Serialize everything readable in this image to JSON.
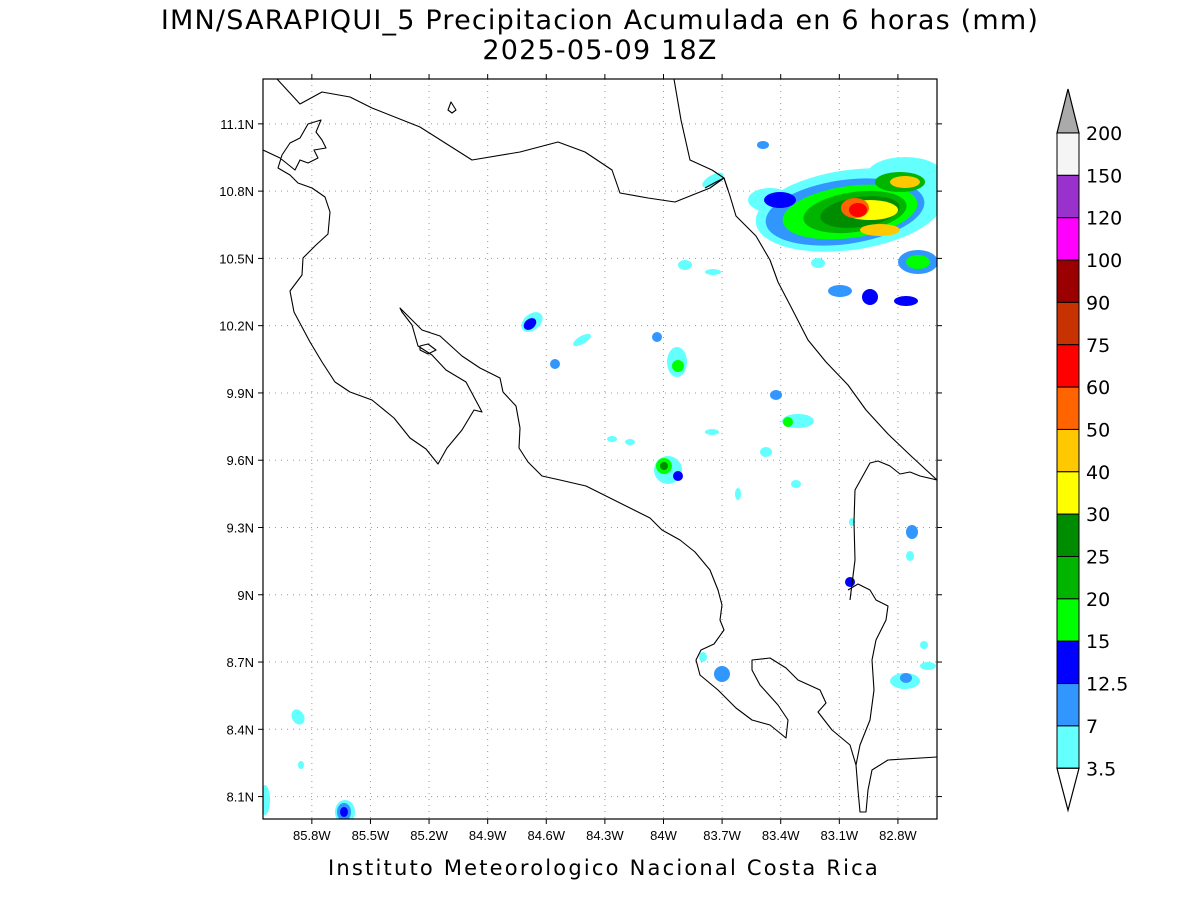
{
  "title": {
    "line1": "IMN/SARAPIQUI_5 Precipitacion Acumulada en 6 horas (mm)",
    "line2": "2025-05-09 18Z"
  },
  "footer": "Instituto Meteorologico Nacional Costa Rica",
  "map": {
    "lon_range": [
      -86.05,
      -82.6
    ],
    "lat_range": [
      8.0,
      11.3
    ],
    "x_ticks": [
      "85.8W",
      "85.5W",
      "85.2W",
      "84.9W",
      "84.6W",
      "84.3W",
      "84W",
      "83.7W",
      "83.4W",
      "83.1W",
      "82.8W"
    ],
    "y_ticks": [
      "11.1N",
      "10.8N",
      "10.5N",
      "10.2N",
      "9.9N",
      "9.6N",
      "9.3N",
      "9N",
      "8.7N",
      "8.4N",
      "8.1N"
    ],
    "grid": "dotted"
  },
  "colorbar": {
    "labels": [
      "200",
      "150",
      "120",
      "100",
      "90",
      "75",
      "60",
      "50",
      "40",
      "30",
      "25",
      "20",
      "15",
      "12.5",
      "7",
      "3.5"
    ],
    "colors": [
      "#f5f5f5",
      "#9932cc",
      "#ff00ff",
      "#9b0000",
      "#c83200",
      "#ff0000",
      "#ff6400",
      "#ffc800",
      "#ffff00",
      "#008c00",
      "#00b400",
      "#00ff00",
      "#0000ff",
      "#3296ff",
      "#64ffff"
    ],
    "top_arrow_color": "#aaaaaa",
    "bottom_arrow_color": "#ffffff"
  }
}
